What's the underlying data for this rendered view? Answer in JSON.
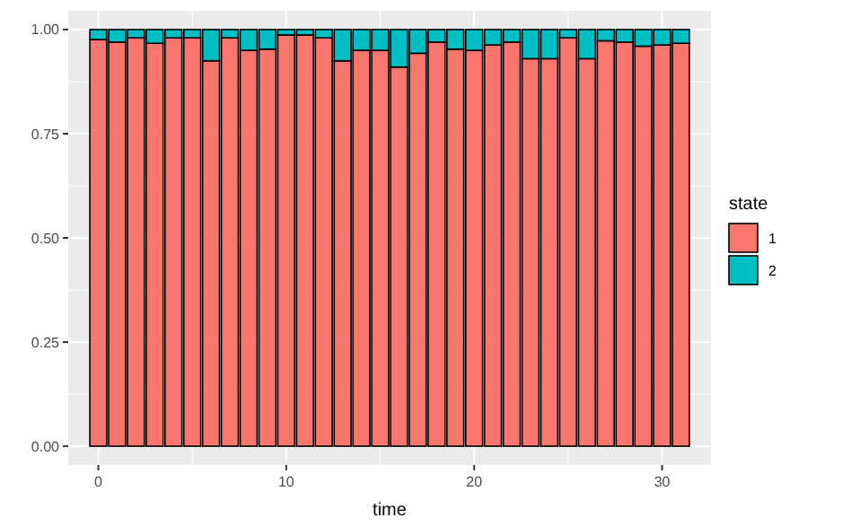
{
  "chart_data": {
    "type": "bar",
    "stacked": true,
    "xlabel": "time",
    "legend_title": "state",
    "legend": "right",
    "grid": true,
    "x": [
      0,
      1,
      2,
      3,
      4,
      5,
      6,
      7,
      8,
      9,
      10,
      11,
      12,
      13,
      14,
      15,
      16,
      17,
      18,
      19,
      20,
      21,
      22,
      23,
      24,
      25,
      26,
      27,
      28,
      29,
      30,
      31
    ],
    "series": [
      {
        "name": "1",
        "color": "#f8766d",
        "values": [
          0.976,
          0.97,
          0.98,
          0.967,
          0.98,
          0.98,
          0.925,
          0.98,
          0.95,
          0.953,
          0.987,
          0.987,
          0.98,
          0.925,
          0.95,
          0.95,
          0.91,
          0.943,
          0.97,
          0.953,
          0.95,
          0.963,
          0.97,
          0.93,
          0.93,
          0.98,
          0.93,
          0.973,
          0.97,
          0.96,
          0.963,
          0.967
        ]
      },
      {
        "name": "2",
        "color": "#00bfc4",
        "values": [
          0.024,
          0.03,
          0.02,
          0.033,
          0.02,
          0.02,
          0.075,
          0.02,
          0.05,
          0.047,
          0.013,
          0.013,
          0.02,
          0.075,
          0.05,
          0.05,
          0.09,
          0.057,
          0.03,
          0.047,
          0.05,
          0.037,
          0.03,
          0.07,
          0.07,
          0.02,
          0.07,
          0.027,
          0.03,
          0.04,
          0.037,
          0.033
        ]
      }
    ],
    "xlim": [
      -1.6,
      32.6
    ],
    "xticks": [
      0,
      10,
      20,
      30
    ],
    "ylim": [
      -0.045,
      1.045
    ],
    "yticks": [
      {
        "value": 0,
        "label": "0.00"
      },
      {
        "value": 0.25,
        "label": "0.25"
      },
      {
        "value": 0.5,
        "label": "0.50"
      },
      {
        "value": 0.75,
        "label": "0.75"
      },
      {
        "value": 1,
        "label": "1.00"
      }
    ]
  }
}
